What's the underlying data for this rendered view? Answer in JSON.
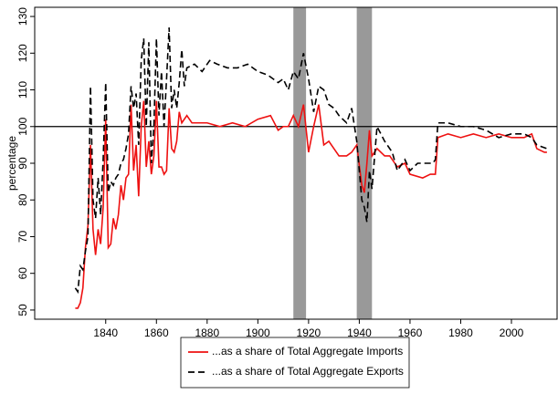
{
  "chart_data": {
    "type": "line",
    "ylabel": "percentage",
    "xlim": [
      1812,
      2018
    ],
    "ylim": [
      47.5,
      132.5
    ],
    "xticks": [
      1840,
      1860,
      1880,
      1900,
      1920,
      1940,
      1960,
      1980,
      2000
    ],
    "yticks": [
      50,
      60,
      70,
      80,
      90,
      100,
      110,
      120,
      130
    ],
    "hline": 100,
    "shaded_periods": [
      [
        1914,
        1919
      ],
      [
        1939,
        1945
      ]
    ],
    "shade_color": "#999999",
    "legend": "bottom",
    "series": [
      {
        "name": "...as a share of Total Aggregate Imports",
        "color": "#ee1111",
        "dash": false,
        "x": [
          1828,
          1829,
          1830,
          1831,
          1832,
          1833,
          1834,
          1835,
          1836,
          1837,
          1838,
          1839,
          1840,
          1841,
          1842,
          1843,
          1844,
          1845,
          1846,
          1847,
          1848,
          1849,
          1850,
          1851,
          1852,
          1853,
          1854,
          1855,
          1856,
          1857,
          1858,
          1859,
          1860,
          1861,
          1862,
          1863,
          1864,
          1865,
          1866,
          1867,
          1868,
          1869,
          1870,
          1872,
          1874,
          1876,
          1880,
          1885,
          1890,
          1895,
          1900,
          1905,
          1908,
          1910,
          1912,
          1914,
          1916,
          1918,
          1920,
          1922,
          1924,
          1926,
          1928,
          1930,
          1932,
          1935,
          1937,
          1939,
          1941,
          1942,
          1943,
          1944,
          1945,
          1947,
          1950,
          1952,
          1955,
          1958,
          1960,
          1965,
          1968,
          1970,
          1971,
          1975,
          1980,
          1985,
          1990,
          1995,
          2000,
          2005,
          2008,
          2010,
          2013,
          2014
        ],
        "values": [
          50.5,
          50.5,
          52,
          56,
          67,
          73,
          95,
          72,
          65,
          72,
          68,
          78,
          102,
          67,
          68,
          75,
          72,
          76,
          84,
          80,
          86,
          87,
          106,
          88,
          95,
          81,
          100,
          107,
          89,
          96,
          87,
          92,
          107,
          89,
          89,
          87,
          88,
          105,
          94,
          93,
          96,
          104,
          101,
          103,
          101,
          101,
          101,
          100,
          101,
          100,
          102,
          103,
          99,
          100,
          100,
          103,
          100,
          106,
          93,
          100,
          106,
          95,
          96,
          94,
          92,
          92,
          93,
          95,
          84,
          82,
          90,
          99,
          92,
          94,
          92,
          92,
          89,
          90,
          87,
          86,
          87,
          87,
          97,
          98,
          97,
          98,
          97,
          98,
          97,
          97,
          98,
          94,
          93,
          93
        ]
      },
      {
        "name": "...as a share of Total Aggregate Exports",
        "color": "#000000",
        "dash": true,
        "x": [
          1828,
          1829,
          1830,
          1831,
          1832,
          1833,
          1834,
          1835,
          1836,
          1837,
          1838,
          1839,
          1840,
          1841,
          1842,
          1843,
          1844,
          1845,
          1846,
          1847,
          1848,
          1849,
          1850,
          1851,
          1852,
          1853,
          1854,
          1855,
          1856,
          1857,
          1858,
          1859,
          1860,
          1861,
          1862,
          1863,
          1864,
          1865,
          1866,
          1867,
          1868,
          1869,
          1870,
          1871,
          1872,
          1875,
          1878,
          1881,
          1884,
          1888,
          1892,
          1896,
          1900,
          1904,
          1908,
          1910,
          1912,
          1914,
          1916,
          1918,
          1920,
          1922,
          1924,
          1926,
          1928,
          1930,
          1932,
          1935,
          1937,
          1939,
          1941,
          1942,
          1943,
          1944,
          1945,
          1947,
          1950,
          1953,
          1955,
          1958,
          1960,
          1963,
          1966,
          1969,
          1970,
          1971,
          1975,
          1980,
          1985,
          1990,
          1995,
          2000,
          2005,
          2008,
          2010,
          2014
        ],
        "values": [
          56,
          55,
          62,
          61,
          66,
          70,
          111,
          80,
          75,
          86,
          76,
          91,
          112,
          82,
          85,
          84,
          86,
          87,
          90,
          91,
          94,
          98,
          111,
          105,
          109,
          95,
          118,
          124,
          100,
          123,
          90,
          100,
          124,
          103,
          115,
          100,
          113,
          127,
          105,
          110,
          105,
          112,
          121,
          111,
          116,
          117,
          115,
          118,
          117,
          116,
          116,
          117,
          115,
          114,
          112,
          113,
          110,
          115,
          113,
          120,
          113,
          104,
          111,
          110,
          106,
          105,
          103,
          101,
          105,
          96,
          80,
          78,
          74,
          88,
          83,
          100,
          96,
          93,
          88,
          91,
          88,
          90,
          90,
          90,
          91,
          101,
          101,
          100,
          100,
          99,
          97,
          98,
          98,
          97,
          95,
          94
        ]
      }
    ]
  }
}
